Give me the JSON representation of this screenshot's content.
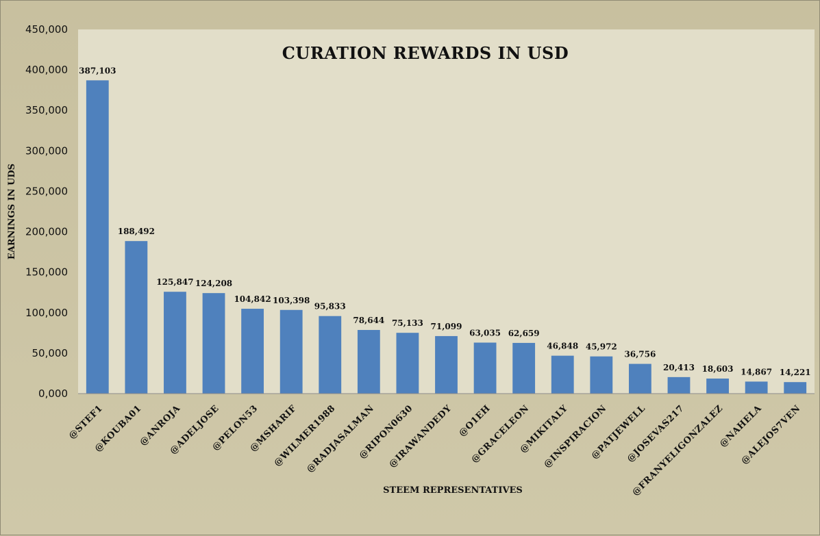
{
  "chart_data": {
    "type": "bar",
    "title": "CURATION REWARDS IN USD",
    "xlabel": "STEEM REPRESENTATIVES",
    "ylabel": "EARNINGS IN UDS",
    "ylim": [
      0,
      450000
    ],
    "yticks": [
      0,
      50000,
      100000,
      150000,
      200000,
      250000,
      300000,
      350000,
      400000,
      450000
    ],
    "ytick_labels": [
      "0,000",
      "50,000",
      "100,000",
      "150,000",
      "200,000",
      "250,000",
      "300,000",
      "350,000",
      "400,000",
      "450,000"
    ],
    "categories": [
      "@STEF1",
      "@KOUBA01",
      "@ANROJA",
      "@ADELJOSE",
      "@PELON53",
      "@MSHARIF",
      "@WILMER1988",
      "@RADJASALMAN",
      "@RIPON0630",
      "@IRAWANDEDY",
      "@O1EH",
      "@GRACELEON",
      "@MIKITALY",
      "@INSPIRACION",
      "@PATJEWELL",
      "@JOSEVAS217",
      "@FRANYELIGONZALEZ",
      "@NAHELA",
      "@ALEJOS7VEN"
    ],
    "values": [
      387103,
      188492,
      125847,
      124208,
      104842,
      103398,
      95833,
      78644,
      75133,
      71099,
      63035,
      62659,
      46848,
      45972,
      36756,
      20413,
      18603,
      14867,
      14221
    ],
    "value_labels": [
      "387,103",
      "188,492",
      "125,847",
      "124,208",
      "104,842",
      "103,398",
      "95,833",
      "78,644",
      "75,133",
      "71,099",
      "63,035",
      "62,659",
      "46,848",
      "45,972",
      "36,756",
      "20,413",
      "18,603",
      "14,867",
      "14,221"
    ],
    "grid": false,
    "legend": "none",
    "colors": {
      "bar": "#4f81bd",
      "plot_background": "#e2dec9",
      "page_background": "#c9c1a0"
    }
  }
}
